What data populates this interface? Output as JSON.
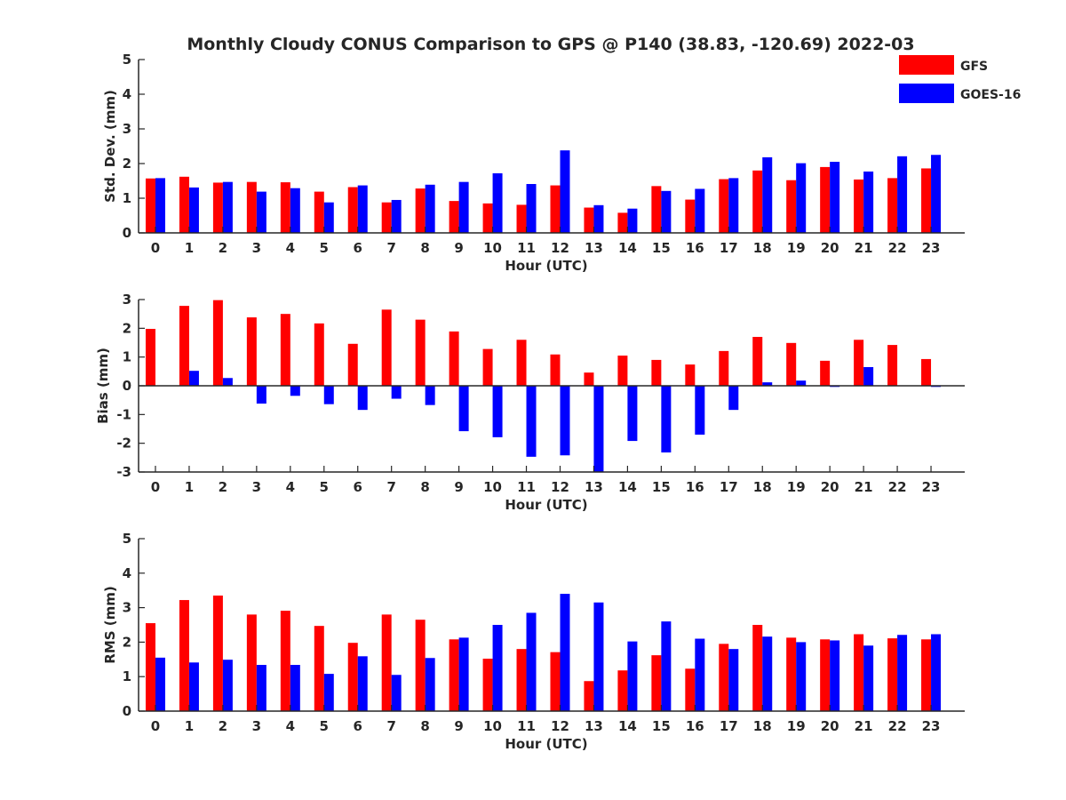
{
  "title": "Monthly Cloudy CONUS Comparison to GPS @ P140 (38.83, -120.69) 2022-03",
  "colors": {
    "GFS": "#ff0000",
    "GOES-16": "#0000ff",
    "axis": "#262626"
  },
  "legend": {
    "position": "top-right",
    "entries": [
      "GFS",
      "GOES-16"
    ]
  },
  "chart_data": [
    {
      "type": "bar",
      "xlabel": "Hour (UTC)",
      "ylabel": "Std. Dev. (mm)",
      "ylim": [
        0,
        5
      ],
      "yticks": [
        "0",
        "1",
        "2",
        "3",
        "4",
        "5"
      ],
      "categories": [
        "0",
        "1",
        "2",
        "3",
        "4",
        "5",
        "6",
        "7",
        "8",
        "9",
        "10",
        "11",
        "12",
        "13",
        "14",
        "15",
        "16",
        "17",
        "18",
        "19",
        "20",
        "21",
        "22",
        "23"
      ],
      "series": [
        {
          "name": "GFS",
          "values": [
            1.57,
            1.62,
            1.45,
            1.47,
            1.46,
            1.19,
            1.32,
            0.88,
            1.28,
            0.92,
            0.85,
            0.81,
            1.37,
            0.73,
            0.58,
            1.35,
            0.96,
            1.55,
            1.8,
            1.52,
            1.9,
            1.54,
            1.58,
            1.86
          ]
        },
        {
          "name": "GOES-16",
          "values": [
            1.58,
            1.31,
            1.47,
            1.19,
            1.29,
            0.88,
            1.37,
            0.95,
            1.39,
            1.47,
            1.72,
            1.41,
            2.38,
            0.8,
            0.7,
            1.21,
            1.27,
            1.58,
            2.18,
            2.01,
            2.05,
            1.77,
            2.21,
            2.25
          ]
        }
      ]
    },
    {
      "type": "bar",
      "xlabel": "Hour (UTC)",
      "ylabel": "Bias (mm)",
      "ylim": [
        -3,
        3
      ],
      "yticks": [
        "-3",
        "-2",
        "-1",
        "0",
        "1",
        "2",
        "3"
      ],
      "categories": [
        "0",
        "1",
        "2",
        "3",
        "4",
        "5",
        "6",
        "7",
        "8",
        "9",
        "10",
        "11",
        "12",
        "13",
        "14",
        "15",
        "16",
        "17",
        "18",
        "19",
        "20",
        "21",
        "22",
        "23"
      ],
      "series": [
        {
          "name": "GFS",
          "values": [
            1.98,
            2.78,
            2.98,
            2.38,
            2.5,
            2.17,
            1.46,
            2.65,
            2.3,
            1.89,
            1.28,
            1.6,
            1.09,
            0.46,
            1.05,
            0.9,
            0.74,
            1.21,
            1.7,
            1.49,
            0.87,
            1.6,
            1.42,
            0.93
          ]
        },
        {
          "name": "GOES-16",
          "values": [
            0.0,
            0.52,
            0.27,
            -0.62,
            -0.35,
            -0.64,
            -0.84,
            -0.45,
            -0.67,
            -1.58,
            -1.79,
            -2.47,
            -2.42,
            -3.0,
            -1.92,
            -2.32,
            -1.7,
            -0.84,
            0.12,
            0.18,
            -0.04,
            0.65,
            0.0,
            -0.04
          ]
        }
      ]
    },
    {
      "type": "bar",
      "xlabel": "Hour (UTC)",
      "ylabel": "RMS (mm)",
      "ylim": [
        0,
        5
      ],
      "yticks": [
        "0",
        "1",
        "2",
        "3",
        "4",
        "5"
      ],
      "categories": [
        "0",
        "1",
        "2",
        "3",
        "4",
        "5",
        "6",
        "7",
        "8",
        "9",
        "10",
        "11",
        "12",
        "13",
        "14",
        "15",
        "16",
        "17",
        "18",
        "19",
        "20",
        "21",
        "22",
        "23"
      ],
      "series": [
        {
          "name": "GFS",
          "values": [
            2.55,
            3.22,
            3.35,
            2.8,
            2.91,
            2.47,
            1.98,
            2.8,
            2.65,
            2.08,
            1.52,
            1.8,
            1.71,
            0.87,
            1.18,
            1.62,
            1.23,
            1.95,
            2.5,
            2.13,
            2.08,
            2.23,
            2.11,
            2.08
          ]
        },
        {
          "name": "GOES-16",
          "values": [
            1.55,
            1.41,
            1.49,
            1.34,
            1.34,
            1.08,
            1.59,
            1.05,
            1.54,
            2.13,
            2.5,
            2.85,
            3.4,
            3.15,
            2.02,
            2.6,
            2.1,
            1.8,
            2.16,
            2.0,
            2.05,
            1.9,
            2.21,
            2.23
          ]
        }
      ]
    }
  ]
}
